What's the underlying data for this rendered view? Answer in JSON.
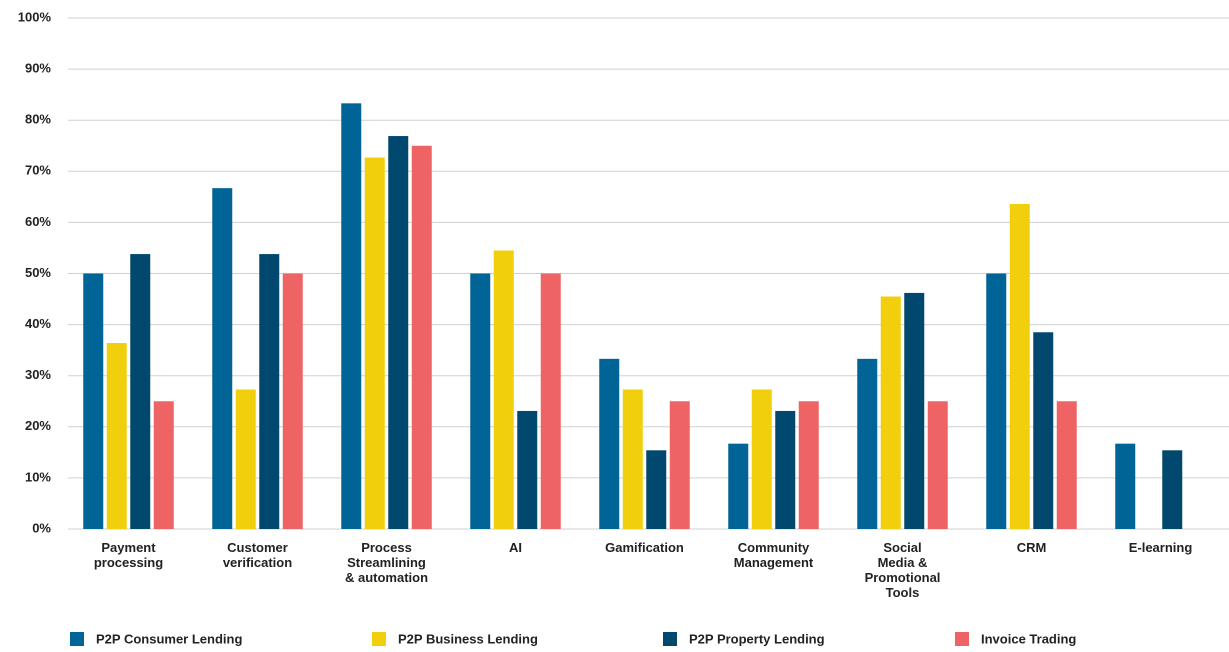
{
  "chart_data": {
    "type": "bar",
    "categories": [
      "Payment\nprocessing",
      "Customer\nverification",
      "Process\nStreamlining\n& automation",
      "AI",
      "Gamification",
      "Community\nManagement",
      "Social\nMedia &\nPromotional\nTools",
      "CRM",
      "E-learning"
    ],
    "series": [
      {
        "name": "P2P Consumer Lending",
        "color": "#006496",
        "values": [
          50,
          66.7,
          83.3,
          50,
          33.3,
          16.7,
          33.3,
          50,
          16.7
        ]
      },
      {
        "name": "P2P Business Lending",
        "color": "#f2cf0c",
        "values": [
          36.4,
          27.3,
          72.7,
          54.5,
          27.3,
          27.3,
          45.5,
          63.6,
          0
        ]
      },
      {
        "name": "P2P Property Lending",
        "color": "#00486e",
        "values": [
          53.8,
          53.8,
          76.9,
          23.1,
          15.4,
          23.1,
          46.2,
          38.5,
          15.4
        ]
      },
      {
        "name": "Invoice Trading",
        "color": "#ee6464",
        "values": [
          25,
          50,
          75,
          50,
          25,
          25,
          25,
          25,
          0
        ]
      }
    ],
    "ylim": [
      0,
      100
    ],
    "yticks": [
      {
        "value": 0,
        "label": "0%"
      },
      {
        "value": 10,
        "label": "10%"
      },
      {
        "value": 20,
        "label": "20%"
      },
      {
        "value": 30,
        "label": "30%"
      },
      {
        "value": 40,
        "label": "40%"
      },
      {
        "value": 50,
        "label": "50%"
      },
      {
        "value": 60,
        "label": "60%"
      },
      {
        "value": 70,
        "label": "70%"
      },
      {
        "value": 80,
        "label": "80%"
      },
      {
        "value": 90,
        "label": "90%"
      },
      {
        "value": 100,
        "label": "100%"
      }
    ],
    "grid": true,
    "legend": "bottom"
  }
}
